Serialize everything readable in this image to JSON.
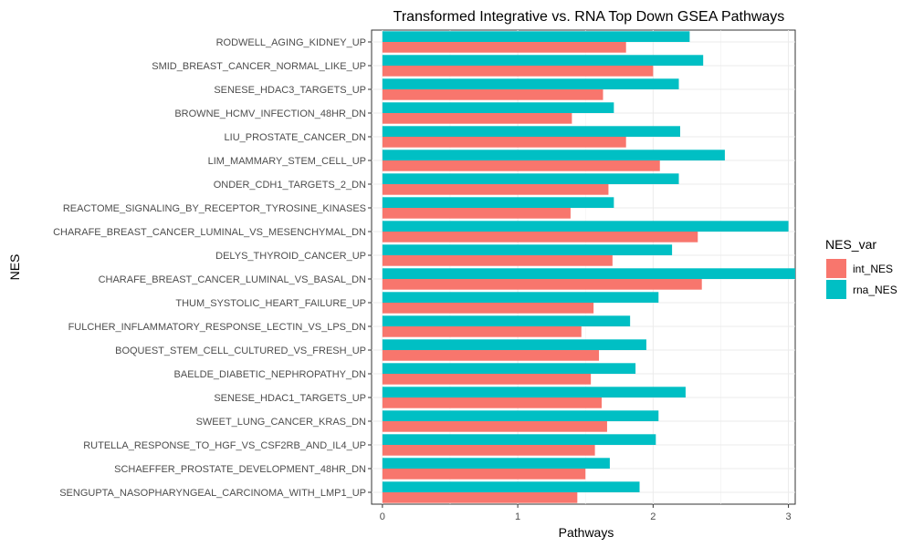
{
  "chart_data": {
    "type": "bar",
    "orientation": "horizontal",
    "title": "Transformed Integrative vs. RNA Top Down GSEA Pathways",
    "xlabel": "Pathways",
    "ylabel": "NES",
    "xlim": [
      -0.08,
      3.05
    ],
    "xticks": [
      0,
      1,
      2,
      3
    ],
    "grid": true,
    "legend_position": "right",
    "legend_title": "NES_var",
    "categories": [
      "RODWELL_AGING_KIDNEY_UP",
      "SMID_BREAST_CANCER_NORMAL_LIKE_UP",
      "SENESE_HDAC3_TARGETS_UP",
      "BROWNE_HCMV_INFECTION_48HR_DN",
      "LIU_PROSTATE_CANCER_DN",
      "LIM_MAMMARY_STEM_CELL_UP",
      "ONDER_CDH1_TARGETS_2_DN",
      "REACTOME_SIGNALING_BY_RECEPTOR_TYROSINE_KINASES",
      "CHARAFE_BREAST_CANCER_LUMINAL_VS_MESENCHYMAL_DN",
      "DELYS_THYROID_CANCER_UP",
      "CHARAFE_BREAST_CANCER_LUMINAL_VS_BASAL_DN",
      "THUM_SYSTOLIC_HEART_FAILURE_UP",
      "FULCHER_INFLAMMATORY_RESPONSE_LECTIN_VS_LPS_DN",
      "BOQUEST_STEM_CELL_CULTURED_VS_FRESH_UP",
      "BAELDE_DIABETIC_NEPHROPATHY_DN",
      "SENESE_HDAC1_TARGETS_UP",
      "SWEET_LUNG_CANCER_KRAS_DN",
      "RUTELLA_RESPONSE_TO_HGF_VS_CSF2RB_AND_IL4_UP",
      "SCHAEFFER_PROSTATE_DEVELOPMENT_48HR_DN",
      "SENGUPTA_NASOPHARYNGEAL_CARCINOMA_WITH_LMP1_UP"
    ],
    "series": [
      {
        "name": "int_NES",
        "color": "#F8766D",
        "values": [
          1.8,
          2.0,
          1.63,
          1.4,
          1.8,
          2.05,
          1.67,
          1.39,
          2.33,
          1.7,
          2.36,
          1.56,
          1.47,
          1.6,
          1.54,
          1.62,
          1.66,
          1.57,
          1.5,
          1.44
        ]
      },
      {
        "name": "rna_NES",
        "color": "#00BFC4",
        "values": [
          2.27,
          2.37,
          2.19,
          1.71,
          2.2,
          2.53,
          2.19,
          1.71,
          3.0,
          2.14,
          3.05,
          2.04,
          1.83,
          1.95,
          1.87,
          2.24,
          2.04,
          2.02,
          1.68,
          1.9
        ]
      }
    ]
  }
}
